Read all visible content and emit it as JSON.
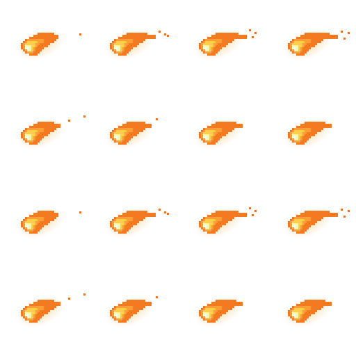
{
  "sprite_sheet": {
    "subject": "fireball",
    "grid": {
      "columns": 4,
      "rows": 4
    },
    "palette": {
      "glow": "#ffd9a8",
      "outer": "#f47a22",
      "mid": "#fb9f35",
      "light": "#ffcf4a",
      "core": "#fff6b0",
      "white": "#fffde8",
      "ember": "#f07020"
    },
    "frames": [
      {
        "variant": 0
      },
      {
        "variant": 1
      },
      {
        "variant": 2
      },
      {
        "variant": 3
      },
      {
        "variant": 4
      },
      {
        "variant": 5
      },
      {
        "variant": 6
      },
      {
        "variant": 7
      },
      {
        "variant": 0
      },
      {
        "variant": 1
      },
      {
        "variant": 2
      },
      {
        "variant": 3
      },
      {
        "variant": 4
      },
      {
        "variant": 5
      },
      {
        "variant": 6
      },
      {
        "variant": 7
      }
    ]
  }
}
